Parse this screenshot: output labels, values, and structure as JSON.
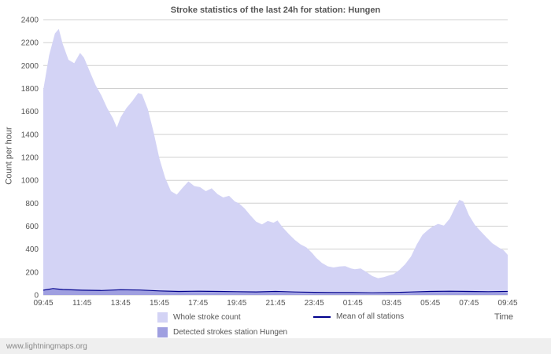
{
  "page": {
    "watermark": "www.lightningmaps.org"
  },
  "chart_data": {
    "type": "area",
    "title": "Stroke statistics of the last 24h for station: Hungen",
    "xlabel": "Time",
    "ylabel": "Count per hour",
    "xlim": [
      0,
      24
    ],
    "ylim": [
      0,
      2400
    ],
    "y_tick_step": 200,
    "grid": "horizontal",
    "legend_position": "bottom",
    "colors": {
      "whole_stroke_count": "#d3d3f5",
      "detected_strokes": "#9f9fe0",
      "mean_line": "#00008c",
      "gridline": "#d0d0d0",
      "axis_text": "#555555"
    },
    "x_ticks": [
      {
        "t": 0,
        "label": "09:45"
      },
      {
        "t": 2,
        "label": "11:45"
      },
      {
        "t": 4,
        "label": "13:45"
      },
      {
        "t": 6,
        "label": "15:45"
      },
      {
        "t": 8,
        "label": "17:45"
      },
      {
        "t": 10,
        "label": "19:45"
      },
      {
        "t": 12,
        "label": "21:45"
      },
      {
        "t": 14,
        "label": "23:45"
      },
      {
        "t": 16,
        "label": "01:45"
      },
      {
        "t": 18,
        "label": "03:45"
      },
      {
        "t": 20,
        "label": "05:45"
      },
      {
        "t": 22,
        "label": "07:45"
      },
      {
        "t": 24,
        "label": "09:45"
      }
    ],
    "legend": [
      {
        "label": "Whole stroke count",
        "type": "area",
        "color": "#d3d3f5"
      },
      {
        "label": "Detected strokes station Hungen",
        "type": "area",
        "color": "#9f9fe0"
      },
      {
        "label": "Mean of all stations",
        "type": "line",
        "color": "#00008c"
      }
    ],
    "series": [
      {
        "id": "whole-stroke-count",
        "name": "Whole stroke count",
        "kind": "area",
        "color": "#d3d3f5",
        "points": [
          [
            0,
            1790
          ],
          [
            0.3,
            2090
          ],
          [
            0.6,
            2280
          ],
          [
            0.8,
            2320
          ],
          [
            1.0,
            2190
          ],
          [
            1.3,
            2050
          ],
          [
            1.6,
            2020
          ],
          [
            1.9,
            2110
          ],
          [
            2.1,
            2070
          ],
          [
            2.4,
            1950
          ],
          [
            2.7,
            1830
          ],
          [
            3.0,
            1740
          ],
          [
            3.3,
            1630
          ],
          [
            3.6,
            1540
          ],
          [
            3.8,
            1460
          ],
          [
            4.0,
            1550
          ],
          [
            4.3,
            1630
          ],
          [
            4.6,
            1690
          ],
          [
            4.9,
            1760
          ],
          [
            5.1,
            1750
          ],
          [
            5.4,
            1620
          ],
          [
            5.7,
            1420
          ],
          [
            6.0,
            1190
          ],
          [
            6.3,
            1020
          ],
          [
            6.6,
            905
          ],
          [
            6.9,
            875
          ],
          [
            7.2,
            935
          ],
          [
            7.5,
            990
          ],
          [
            7.8,
            950
          ],
          [
            8.1,
            940
          ],
          [
            8.4,
            905
          ],
          [
            8.7,
            930
          ],
          [
            9.0,
            880
          ],
          [
            9.3,
            850
          ],
          [
            9.6,
            865
          ],
          [
            9.9,
            815
          ],
          [
            10.1,
            800
          ],
          [
            10.4,
            755
          ],
          [
            10.7,
            695
          ],
          [
            11.0,
            640
          ],
          [
            11.3,
            615
          ],
          [
            11.6,
            645
          ],
          [
            11.9,
            630
          ],
          [
            12.1,
            650
          ],
          [
            12.4,
            585
          ],
          [
            12.7,
            530
          ],
          [
            13.0,
            480
          ],
          [
            13.3,
            440
          ],
          [
            13.6,
            415
          ],
          [
            13.9,
            365
          ],
          [
            14.1,
            325
          ],
          [
            14.4,
            280
          ],
          [
            14.7,
            250
          ],
          [
            15.0,
            240
          ],
          [
            15.3,
            248
          ],
          [
            15.6,
            252
          ],
          [
            15.9,
            232
          ],
          [
            16.1,
            224
          ],
          [
            16.4,
            232
          ],
          [
            16.7,
            200
          ],
          [
            17.0,
            165
          ],
          [
            17.3,
            147
          ],
          [
            17.6,
            156
          ],
          [
            17.9,
            172
          ],
          [
            18.1,
            182
          ],
          [
            18.4,
            218
          ],
          [
            18.7,
            268
          ],
          [
            19.0,
            335
          ],
          [
            19.3,
            440
          ],
          [
            19.6,
            525
          ],
          [
            19.9,
            570
          ],
          [
            20.1,
            595
          ],
          [
            20.4,
            620
          ],
          [
            20.7,
            605
          ],
          [
            21.0,
            665
          ],
          [
            21.3,
            770
          ],
          [
            21.5,
            830
          ],
          [
            21.7,
            815
          ],
          [
            22.0,
            695
          ],
          [
            22.3,
            612
          ],
          [
            22.6,
            556
          ],
          [
            22.9,
            502
          ],
          [
            23.2,
            452
          ],
          [
            23.5,
            418
          ],
          [
            23.8,
            388
          ],
          [
            24,
            350
          ]
        ]
      },
      {
        "id": "detected-strokes",
        "name": "Detected strokes station Hungen",
        "kind": "area",
        "color": "#9f9fe0",
        "points": [
          [
            0,
            45
          ],
          [
            1,
            52
          ],
          [
            2,
            42
          ],
          [
            3,
            38
          ],
          [
            4,
            44
          ],
          [
            5,
            40
          ],
          [
            6,
            32
          ],
          [
            7,
            28
          ],
          [
            8,
            27
          ],
          [
            9,
            25
          ],
          [
            10,
            23
          ],
          [
            11,
            21
          ],
          [
            12,
            23
          ],
          [
            13,
            19
          ],
          [
            14,
            15
          ],
          [
            15,
            13
          ],
          [
            16,
            13
          ],
          [
            17,
            11
          ],
          [
            18,
            13
          ],
          [
            19,
            19
          ],
          [
            20,
            26
          ],
          [
            21,
            31
          ],
          [
            22,
            29
          ],
          [
            23,
            23
          ],
          [
            24,
            21
          ]
        ]
      },
      {
        "id": "mean-of-all-stations",
        "name": "Mean of all stations",
        "kind": "line",
        "color": "#00008c",
        "points": [
          [
            0,
            42
          ],
          [
            0.5,
            56
          ],
          [
            1,
            48
          ],
          [
            2,
            42
          ],
          [
            3,
            39
          ],
          [
            4,
            46
          ],
          [
            5,
            43
          ],
          [
            6,
            36
          ],
          [
            7,
            31
          ],
          [
            8,
            33
          ],
          [
            9,
            31
          ],
          [
            10,
            29
          ],
          [
            11,
            27
          ],
          [
            12,
            31
          ],
          [
            13,
            26
          ],
          [
            14,
            23
          ],
          [
            15,
            21
          ],
          [
            16,
            21
          ],
          [
            17,
            19
          ],
          [
            18,
            21
          ],
          [
            19,
            26
          ],
          [
            20,
            31
          ],
          [
            21,
            33
          ],
          [
            22,
            31
          ],
          [
            23,
            29
          ],
          [
            24,
            31
          ]
        ]
      }
    ]
  }
}
